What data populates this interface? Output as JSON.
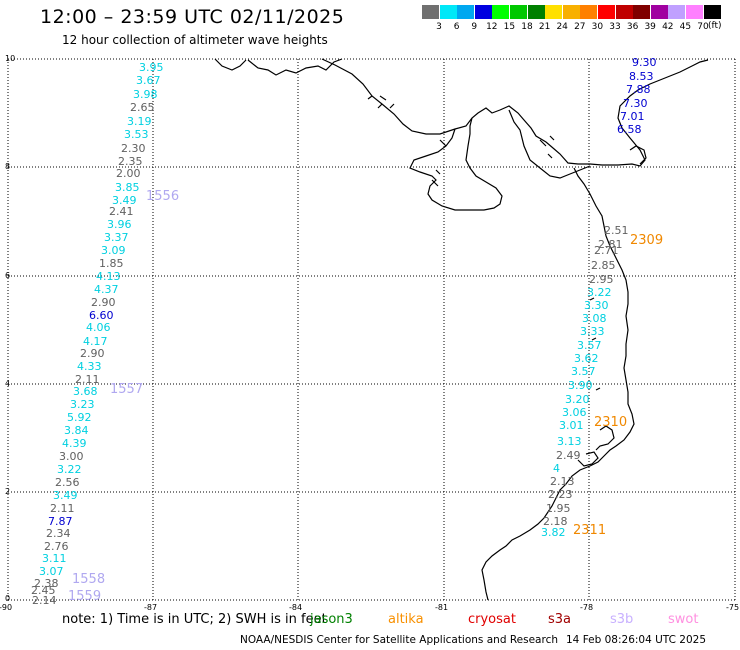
{
  "header": {
    "title": "12:00 – 23:59 UTC 02/11/2025",
    "subtitle": "12 hour collection of altimeter wave heights"
  },
  "legend": {
    "colors": [
      "#707070",
      "#00e8f8",
      "#00a8f0",
      "#0000e0",
      "#00ff00",
      "#00c800",
      "#008000",
      "#ffe000",
      "#f8b000",
      "#ff8000",
      "#ff0000",
      "#c00000",
      "#800000",
      "#a000a0",
      "#c0a0ff",
      "#ff80ff",
      "#000000"
    ],
    "labels": [
      "3",
      "6",
      "9",
      "12",
      "15",
      "18",
      "21",
      "24",
      "27",
      "30",
      "33",
      "36",
      "39",
      "42",
      "45",
      "70"
    ],
    "unit": "(ft)"
  },
  "axes": {
    "x_ticks": [
      "-90",
      "-87",
      "-84",
      "-81",
      "-78",
      "-75"
    ],
    "y_ticks": [
      "10",
      "8",
      "6",
      "4",
      "2",
      "0"
    ],
    "x_range": [
      -90,
      -75
    ],
    "y_range": [
      0,
      10
    ]
  },
  "wave_labels": [
    {
      "v": "3.95",
      "c": "cyan"
    },
    {
      "v": "3.67",
      "c": "cyan"
    },
    {
      "v": "3.98",
      "c": "cyan"
    },
    {
      "v": "2.65",
      "c": "gray"
    },
    {
      "v": "3.19",
      "c": "cyan"
    },
    {
      "v": "3.53",
      "c": "cyan"
    },
    {
      "v": "2.30",
      "c": "gray"
    },
    {
      "v": "2.35",
      "c": "gray"
    },
    {
      "v": "2.00",
      "c": "gray"
    },
    {
      "v": "3.85",
      "c": "cyan"
    },
    {
      "v": "3.49",
      "c": "cyan"
    },
    {
      "v": "2.41",
      "c": "gray"
    },
    {
      "v": "3.96",
      "c": "cyan"
    },
    {
      "v": "3.37",
      "c": "cyan"
    },
    {
      "v": "3.09",
      "c": "cyan"
    },
    {
      "v": "1.85",
      "c": "gray"
    },
    {
      "v": "4.13",
      "c": "cyan"
    },
    {
      "v": "4.37",
      "c": "cyan"
    },
    {
      "v": "2.90",
      "c": "gray"
    },
    {
      "v": "6.60",
      "c": "blue"
    },
    {
      "v": "4.06",
      "c": "cyan"
    },
    {
      "v": "4.17",
      "c": "cyan"
    },
    {
      "v": "2.90",
      "c": "gray"
    },
    {
      "v": "4.33",
      "c": "cyan"
    },
    {
      "v": "2.11",
      "c": "gray"
    },
    {
      "v": "3.68",
      "c": "cyan"
    },
    {
      "v": "3.23",
      "c": "cyan"
    },
    {
      "v": "5.92",
      "c": "cyan"
    },
    {
      "v": "3.84",
      "c": "cyan"
    },
    {
      "v": "4.39",
      "c": "cyan"
    },
    {
      "v": "3.00",
      "c": "gray"
    },
    {
      "v": "3.22",
      "c": "cyan"
    },
    {
      "v": "2.56",
      "c": "gray"
    },
    {
      "v": "3.49",
      "c": "cyan"
    },
    {
      "v": "2.11",
      "c": "gray"
    },
    {
      "v": "7.87",
      "c": "blue"
    },
    {
      "v": "2.34",
      "c": "gray"
    },
    {
      "v": "2.76",
      "c": "gray"
    },
    {
      "v": "3.11",
      "c": "cyan"
    },
    {
      "v": "3.07",
      "c": "cyan"
    },
    {
      "v": "2.38",
      "c": "gray"
    },
    {
      "v": "2.45",
      "c": "gray"
    },
    {
      "v": "2.14",
      "c": "gray"
    },
    {
      "v": "9.30",
      "c": "blue"
    },
    {
      "v": "8.53",
      "c": "blue"
    },
    {
      "v": "7.88",
      "c": "blue"
    },
    {
      "v": "7.30",
      "c": "blue"
    },
    {
      "v": "7.01",
      "c": "blue"
    },
    {
      "v": "6.58",
      "c": "blue"
    },
    {
      "v": "2.51",
      "c": "gray"
    },
    {
      "v": "2.81",
      "c": "gray"
    },
    {
      "v": "2.71",
      "c": "gray"
    },
    {
      "v": "2.85",
      "c": "gray"
    },
    {
      "v": "2.95",
      "c": "gray"
    },
    {
      "v": "3.22",
      "c": "cyan"
    },
    {
      "v": "3.30",
      "c": "cyan"
    },
    {
      "v": "3.08",
      "c": "cyan"
    },
    {
      "v": "3.33",
      "c": "cyan"
    },
    {
      "v": "3.57",
      "c": "cyan"
    },
    {
      "v": "3.62",
      "c": "cyan"
    },
    {
      "v": "3.57",
      "c": "cyan"
    },
    {
      "v": "3.90",
      "c": "cyan"
    },
    {
      "v": "3.20",
      "c": "cyan"
    },
    {
      "v": "3.06",
      "c": "cyan"
    },
    {
      "v": "3.01",
      "c": "cyan"
    },
    {
      "v": "3.13",
      "c": "cyan"
    },
    {
      "v": "2.49",
      "c": "gray"
    },
    {
      "v": "4",
      "c": "cyan"
    },
    {
      "v": "2.13",
      "c": "gray"
    },
    {
      "v": "2.23",
      "c": "gray"
    },
    {
      "v": "1.95",
      "c": "gray"
    },
    {
      "v": "2.18",
      "c": "gray"
    },
    {
      "v": "3.82",
      "c": "cyan"
    }
  ],
  "pass_labels": [
    {
      "v": "1556",
      "c": "lav"
    },
    {
      "v": "1557",
      "c": "lav"
    },
    {
      "v": "1558",
      "c": "lav"
    },
    {
      "v": "1559",
      "c": "lav"
    },
    {
      "v": "2309",
      "c": "orange"
    },
    {
      "v": "2310",
      "c": "orange"
    },
    {
      "v": "2311",
      "c": "orange"
    }
  ],
  "notes": {
    "text": "note:  1) Time is in UTC; 2) SWH is in feet"
  },
  "satellites": [
    {
      "name": "jason3",
      "color": "#008000"
    },
    {
      "name": "altika",
      "color": "#f89000"
    },
    {
      "name": "cryosat",
      "color": "#e00000"
    },
    {
      "name": "s3a",
      "color": "#a00000"
    },
    {
      "name": "s3b",
      "color": "#c8b0ff"
    },
    {
      "name": "swot",
      "color": "#ff90e0"
    }
  ],
  "footer": {
    "left": "NOAA/NESDIS Center for Satellite Applications and Research",
    "right": "14 Feb 08:26:04 UTC 2025"
  },
  "label_colors": {
    "cyan": "#00d0e0",
    "gray": "#606060",
    "blue": "#0000d0",
    "lav": "#b0a8f0",
    "orange": "#f08800"
  }
}
